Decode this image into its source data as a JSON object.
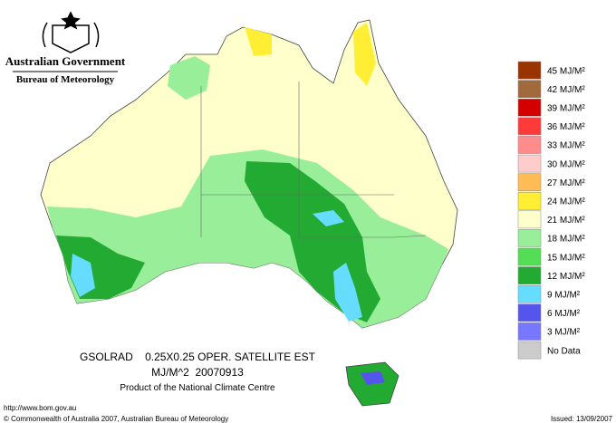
{
  "header": {
    "title": "Australian Government",
    "subtitle": "Bureau of Meteorology"
  },
  "legend": [
    {
      "label": "45 MJ/M²",
      "color": "#993300"
    },
    {
      "label": "42 MJ/M²",
      "color": "#a06a3c"
    },
    {
      "label": "39 MJ/M²",
      "color": "#d40000"
    },
    {
      "label": "36 MJ/M²",
      "color": "#ff3a3a"
    },
    {
      "label": "33 MJ/M²",
      "color": "#ff8c8c"
    },
    {
      "label": "30 MJ/M²",
      "color": "#ffcccc"
    },
    {
      "label": "27 MJ/M²",
      "color": "#ffbb55"
    },
    {
      "label": "24 MJ/M²",
      "color": "#ffee33"
    },
    {
      "label": "21 MJ/M²",
      "color": "#ffffcc"
    },
    {
      "label": "18 MJ/M²",
      "color": "#99ee99"
    },
    {
      "label": "15 MJ/M²",
      "color": "#55dd55"
    },
    {
      "label": "12 MJ/M²",
      "color": "#22aa33"
    },
    {
      "label": "9 MJ/M²",
      "color": "#66ddff"
    },
    {
      "label": "6 MJ/M²",
      "color": "#5555ee"
    },
    {
      "label": "3 MJ/M²",
      "color": "#7777ff"
    },
    {
      "label": "No Data",
      "color": "#cccccc"
    }
  ],
  "caption": [
    "GSOLRAD    0.25X0.25 OPER. SATELLITE EST",
    "MJ/M^2  20070913",
    "Product of the National Climate Centre"
  ],
  "footer": {
    "url": "http://www.bom.gov.au",
    "copyright": "© Commonwealth of Australia 2007, Australian Bureau of Meteorology",
    "issued": "Issued: 13/09/2007"
  }
}
